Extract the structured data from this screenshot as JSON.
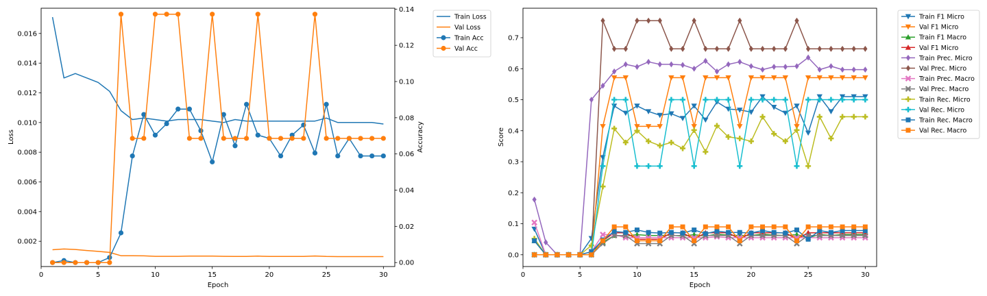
{
  "chart_data": [
    {
      "type": "line",
      "xlabel": "Epoch",
      "ylabel": "Loss",
      "ylabel_right": "Accuracy",
      "x": [
        1,
        2,
        3,
        4,
        5,
        6,
        7,
        8,
        9,
        10,
        11,
        12,
        13,
        14,
        15,
        16,
        17,
        18,
        19,
        20,
        21,
        22,
        23,
        24,
        25,
        26,
        27,
        28,
        29,
        30
      ],
      "xlim": [
        0,
        31
      ],
      "ylim": [
        0.0003,
        0.0177
      ],
      "ylim_right": [
        -0.0022,
        0.1405
      ],
      "xticks": [
        0,
        5,
        10,
        15,
        20,
        25,
        30
      ],
      "yticks": [
        0.002,
        0.004,
        0.006,
        0.008,
        0.01,
        0.012,
        0.014,
        0.016
      ],
      "ytick_labels": [
        "0.002",
        "0.004",
        "0.006",
        "0.008",
        "0.010",
        "0.012",
        "0.014",
        "0.016"
      ],
      "yticks_right": [
        0.0,
        0.02,
        0.04,
        0.06,
        0.08,
        0.1,
        0.12,
        0.14
      ],
      "ytick_labels_right": [
        "0.00",
        "0.02",
        "0.04",
        "0.06",
        "0.08",
        "0.10",
        "0.12",
        "0.14"
      ],
      "legend_position": "outside-top-right",
      "series": [
        {
          "name": "Train Loss",
          "axis": "left",
          "color": "#1f77b4",
          "marker": "none",
          "values": [
            0.0171,
            0.013,
            0.0133,
            0.013,
            0.0127,
            0.0121,
            0.0108,
            0.0102,
            0.0103,
            0.0102,
            0.0101,
            0.0102,
            0.0102,
            0.0102,
            0.0101,
            0.01,
            0.0102,
            0.0101,
            0.0101,
            0.0101,
            0.0101,
            0.0101,
            0.0101,
            0.0101,
            0.0103,
            0.01,
            0.01,
            0.01,
            0.01,
            0.0099
          ]
        },
        {
          "name": "Val Loss",
          "axis": "left",
          "color": "#ff7f0e",
          "marker": "none",
          "values": [
            0.00143,
            0.00148,
            0.00145,
            0.00138,
            0.00132,
            0.00125,
            0.00103,
            0.00103,
            0.00102,
            0.00099,
            0.00099,
            0.00099,
            0.001,
            0.001,
            0.001,
            0.00099,
            0.00098,
            0.00098,
            0.001,
            0.00098,
            0.00098,
            0.00098,
            0.00098,
            0.00101,
            0.00098,
            0.00097,
            0.00097,
            0.00097,
            0.00097,
            0.00097
          ]
        },
        {
          "name": "Train Acc",
          "axis": "right",
          "color": "#1f77b4",
          "marker": "circle",
          "values": [
            0.0,
            0.0011,
            0.0,
            0.0,
            0.0,
            0.0028,
            0.0164,
            0.0589,
            0.0818,
            0.0704,
            0.0767,
            0.0848,
            0.0848,
            0.0728,
            0.0556,
            0.0818,
            0.0645,
            0.0874,
            0.0704,
            0.0686,
            0.0589,
            0.0704,
            0.076,
            0.0605,
            0.0874,
            0.0589,
            0.0686,
            0.0589,
            0.0589,
            0.0589
          ]
        },
        {
          "name": "Val Acc",
          "axis": "right",
          "color": "#ff7f0e",
          "marker": "circle",
          "values": [
            0.0,
            0.0,
            0.0,
            0.0,
            0.0,
            0.0,
            0.1372,
            0.0686,
            0.0686,
            0.1372,
            0.1372,
            0.1372,
            0.0686,
            0.0686,
            0.1372,
            0.0686,
            0.0686,
            0.0686,
            0.1372,
            0.0686,
            0.0686,
            0.0686,
            0.0686,
            0.1372,
            0.0686,
            0.0686,
            0.0686,
            0.0686,
            0.0686,
            0.0686
          ]
        }
      ]
    },
    {
      "type": "line",
      "xlabel": "Epoch",
      "ylabel": "Score",
      "x": [
        1,
        2,
        3,
        4,
        5,
        6,
        7,
        8,
        9,
        10,
        11,
        12,
        13,
        14,
        15,
        16,
        17,
        18,
        19,
        20,
        21,
        22,
        23,
        24,
        25,
        26,
        27,
        28,
        29,
        30
      ],
      "xlim": [
        0,
        31
      ],
      "ylim": [
        -0.038,
        0.795
      ],
      "xticks": [
        0,
        5,
        10,
        15,
        20,
        25,
        30
      ],
      "yticks": [
        0.0,
        0.1,
        0.2,
        0.3,
        0.4,
        0.5,
        0.6,
        0.7
      ],
      "ytick_labels": [
        "0.0",
        "0.1",
        "0.2",
        "0.3",
        "0.4",
        "0.5",
        "0.6",
        "0.7"
      ],
      "legend_position": "outside-top-right",
      "series": [
        {
          "name": "Train F1 Micro",
          "color": "#1f77b4",
          "marker": "triangle-down",
          "values": [
            0.083,
            0.0,
            0.0,
            0.0,
            0.0,
            0.053,
            0.314,
            0.48,
            0.457,
            0.48,
            0.462,
            0.45,
            0.455,
            0.44,
            0.48,
            0.435,
            0.493,
            0.47,
            0.467,
            0.46,
            0.51,
            0.476,
            0.457,
            0.48,
            0.393,
            0.51,
            0.462,
            0.51,
            0.51,
            0.51
          ]
        },
        {
          "name": "Val F1 Micro",
          "color": "#ff7f0e",
          "marker": "triangle-down",
          "values": [
            0.0,
            0.0,
            0.0,
            0.0,
            0.0,
            0.0,
            0.414,
            0.571,
            0.571,
            0.414,
            0.414,
            0.414,
            0.571,
            0.571,
            0.414,
            0.571,
            0.571,
            0.571,
            0.414,
            0.571,
            0.571,
            0.571,
            0.571,
            0.414,
            0.571,
            0.571,
            0.571,
            0.571,
            0.571,
            0.571
          ]
        },
        {
          "name": "Train F1 Macro",
          "color": "#2ca02c",
          "marker": "triangle-up",
          "values": [
            0.045,
            0.0,
            0.0,
            0.0,
            0.0,
            0.01,
            0.04,
            0.062,
            0.06,
            0.065,
            0.062,
            0.062,
            0.063,
            0.06,
            0.065,
            0.06,
            0.066,
            0.063,
            0.062,
            0.062,
            0.066,
            0.063,
            0.062,
            0.065,
            0.055,
            0.065,
            0.062,
            0.065,
            0.065,
            0.065
          ]
        },
        {
          "name": "Val F1 Micro",
          "color": "#d62728",
          "marker": "triangle-up",
          "values": [
            0.0,
            0.0,
            0.0,
            0.0,
            0.0,
            0.0,
            0.045,
            0.071,
            0.071,
            0.05,
            0.05,
            0.05,
            0.071,
            0.071,
            0.05,
            0.071,
            0.071,
            0.071,
            0.05,
            0.071,
            0.071,
            0.071,
            0.071,
            0.05,
            0.071,
            0.071,
            0.071,
            0.071,
            0.071,
            0.071
          ]
        },
        {
          "name": "Train Prec. Micro",
          "color": "#9467bd",
          "marker": "diamond",
          "values": [
            0.178,
            0.04,
            0.0,
            0.0,
            0.0,
            0.5,
            0.545,
            0.591,
            0.614,
            0.606,
            0.622,
            0.614,
            0.614,
            0.612,
            0.6,
            0.625,
            0.591,
            0.614,
            0.622,
            0.608,
            0.597,
            0.606,
            0.606,
            0.608,
            0.636,
            0.597,
            0.608,
            0.597,
            0.597,
            0.597
          ]
        },
        {
          "name": "Val Prec. Micro",
          "color": "#8c564b",
          "marker": "diamond",
          "values": [
            0.0,
            0.0,
            0.0,
            0.0,
            0.0,
            0.0,
            0.755,
            0.664,
            0.664,
            0.755,
            0.755,
            0.755,
            0.664,
            0.664,
            0.755,
            0.664,
            0.664,
            0.664,
            0.755,
            0.664,
            0.664,
            0.664,
            0.664,
            0.755,
            0.664,
            0.664,
            0.664,
            0.664,
            0.664,
            0.664
          ]
        },
        {
          "name": "Train Prec. Macro",
          "color": "#e377c2",
          "marker": "x",
          "values": [
            0.104,
            0.0,
            0.0,
            0.0,
            0.0,
            0.01,
            0.065,
            0.065,
            0.055,
            0.055,
            0.055,
            0.055,
            0.055,
            0.055,
            0.055,
            0.055,
            0.058,
            0.055,
            0.055,
            0.055,
            0.055,
            0.055,
            0.055,
            0.055,
            0.055,
            0.055,
            0.055,
            0.055,
            0.055,
            0.055
          ]
        },
        {
          "name": "Val Prec. Macro",
          "color": "#7f7f7f",
          "marker": "x",
          "values": [
            0.0,
            0.0,
            0.0,
            0.0,
            0.0,
            0.0,
            0.036,
            0.062,
            0.062,
            0.036,
            0.036,
            0.036,
            0.062,
            0.062,
            0.036,
            0.062,
            0.062,
            0.062,
            0.036,
            0.062,
            0.062,
            0.062,
            0.062,
            0.036,
            0.062,
            0.062,
            0.062,
            0.062,
            0.062,
            0.062
          ]
        },
        {
          "name": "Train Rec. Micro",
          "color": "#bcbd22",
          "marker": "plus",
          "values": [
            0.052,
            0.0,
            0.0,
            0.0,
            0.0,
            0.03,
            0.22,
            0.407,
            0.362,
            0.4,
            0.366,
            0.352,
            0.362,
            0.343,
            0.402,
            0.332,
            0.416,
            0.38,
            0.375,
            0.366,
            0.445,
            0.39,
            0.366,
            0.402,
            0.286,
            0.445,
            0.375,
            0.445,
            0.445,
            0.445
          ]
        },
        {
          "name": "Val Rec. Micro",
          "color": "#17becf",
          "marker": "plus",
          "values": [
            0.0,
            0.0,
            0.0,
            0.0,
            0.0,
            0.0,
            0.286,
            0.5,
            0.5,
            0.286,
            0.286,
            0.286,
            0.5,
            0.5,
            0.286,
            0.5,
            0.5,
            0.5,
            0.286,
            0.5,
            0.5,
            0.5,
            0.5,
            0.286,
            0.5,
            0.5,
            0.5,
            0.5,
            0.5,
            0.5
          ]
        },
        {
          "name": "Train Rec. Macro",
          "color": "#1f77b4",
          "marker": "square",
          "values": [
            0.045,
            0.0,
            0.0,
            0.0,
            0.0,
            0.01,
            0.048,
            0.075,
            0.072,
            0.08,
            0.072,
            0.07,
            0.072,
            0.07,
            0.08,
            0.068,
            0.076,
            0.072,
            0.072,
            0.07,
            0.078,
            0.072,
            0.07,
            0.08,
            0.05,
            0.078,
            0.072,
            0.078,
            0.078,
            0.078
          ]
        },
        {
          "name": "Val Rec. Macro",
          "color": "#ff7f0e",
          "marker": "square",
          "values": [
            0.0,
            0.0,
            0.0,
            0.0,
            0.0,
            0.0,
            0.045,
            0.09,
            0.09,
            0.045,
            0.045,
            0.045,
            0.09,
            0.09,
            0.045,
            0.09,
            0.09,
            0.09,
            0.045,
            0.09,
            0.09,
            0.09,
            0.09,
            0.045,
            0.09,
            0.09,
            0.09,
            0.09,
            0.09,
            0.09
          ]
        }
      ]
    }
  ]
}
